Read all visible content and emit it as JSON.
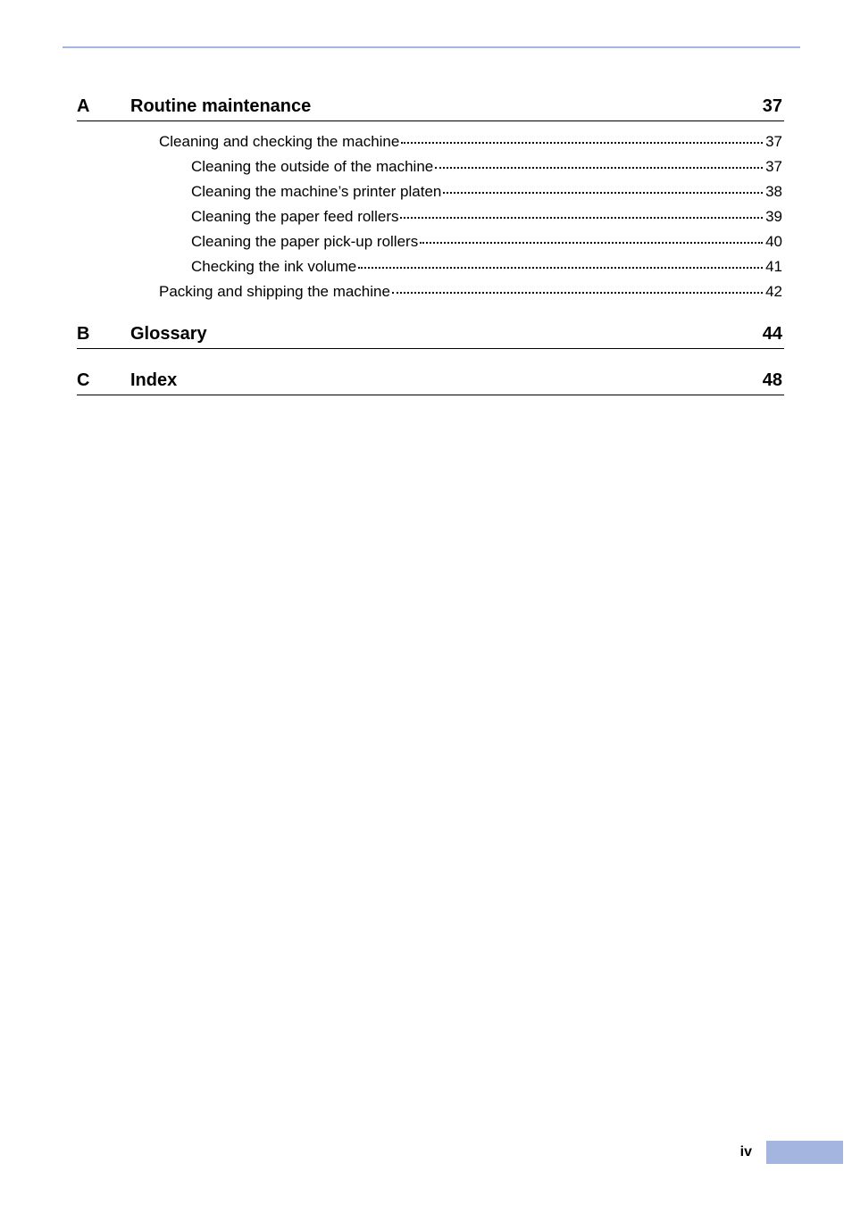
{
  "colors": {
    "accent_bar": "#a4b6e0",
    "text": "#000000",
    "background": "#ffffff"
  },
  "typography": {
    "section_head_fontsize_pt": 15,
    "section_head_weight": "bold",
    "entry_fontsize_pt": 13,
    "footer_fontsize_pt": 12,
    "footer_weight": "bold",
    "font_family": "Arial"
  },
  "sections": [
    {
      "letter": "A",
      "title": "Routine maintenance",
      "page": "37",
      "entries": [
        {
          "level": 1,
          "label": "Cleaning and checking the machine",
          "page": "37"
        },
        {
          "level": 2,
          "label": "Cleaning the outside of the machine",
          "page": "37"
        },
        {
          "level": 2,
          "label": "Cleaning the machine’s printer platen",
          "page": "38"
        },
        {
          "level": 2,
          "label": "Cleaning the paper feed rollers",
          "page": "39"
        },
        {
          "level": 2,
          "label": "Cleaning the paper pick-up rollers",
          "page": "40"
        },
        {
          "level": 2,
          "label": "Checking the ink volume",
          "page": "41"
        },
        {
          "level": 1,
          "label": "Packing and shipping the machine",
          "page": "42"
        }
      ]
    },
    {
      "letter": "B",
      "title": "Glossary",
      "page": "44",
      "entries": []
    },
    {
      "letter": "C",
      "title": "Index",
      "page": "48",
      "entries": []
    }
  ],
  "footer": {
    "page_label": "iv"
  }
}
